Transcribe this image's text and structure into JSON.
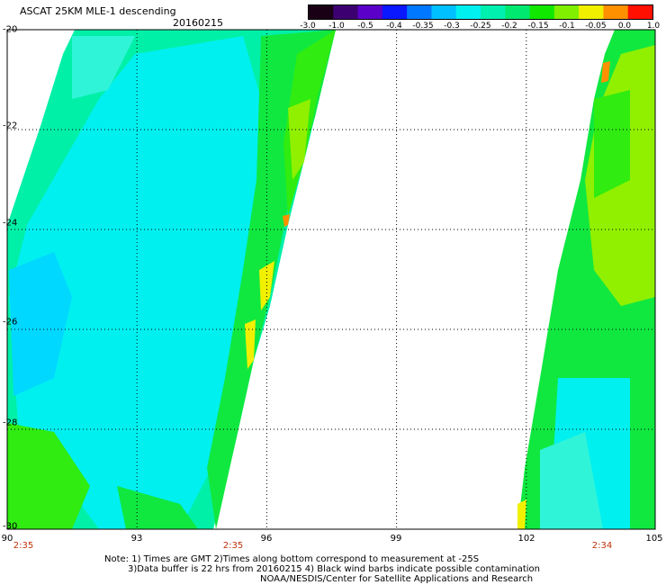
{
  "header": {
    "title": "ASCAT 25KM MLE-1 descending",
    "date": "20160215"
  },
  "colorbar": {
    "labels": [
      "-3.0",
      "-1.0",
      "-0.5",
      "-0.4",
      "-0.35",
      "-0.3",
      "-0.25",
      "-0.2",
      "-0.15",
      "-0.1",
      "-0.05",
      "0.0",
      "1.0"
    ],
    "colors": [
      "#1a0015",
      "#3d0070",
      "#5a00c8",
      "#0a18ff",
      "#0078ff",
      "#00c0ff",
      "#00f0f0",
      "#00f0b0",
      "#00e870",
      "#10e800",
      "#80f000",
      "#f0f000",
      "#ff9000",
      "#ff1000"
    ]
  },
  "axes": {
    "lat_labels": [
      "-20",
      "-22",
      "-24",
      "-26",
      "-28",
      "-30"
    ],
    "lon_labels": [
      "90",
      "93",
      "96",
      "99",
      "102",
      "105"
    ]
  },
  "time_labels": [
    "2:35",
    "2:35",
    "2:34"
  ],
  "notes": {
    "line1": "Note: 1) Times are GMT 2)Times along bottom correspond to measurement at -25S",
    "line2": "3)Data buffer is 22 hrs from 20160215 4) Black wind barbs indicate possible contamination",
    "line3": "NOAA/NESDIS/Center for Satellite Applications and Research"
  },
  "palette": {
    "cyan": "#00f0f0",
    "light_cyan": "#30f4d8",
    "aqua_green": "#00f0a8",
    "green": "#10e840",
    "bright_green": "#30ec10",
    "yellow_green": "#90f000",
    "yellow": "#f0f000",
    "orange": "#ff9000",
    "blue_cyan": "#00d8ff"
  }
}
